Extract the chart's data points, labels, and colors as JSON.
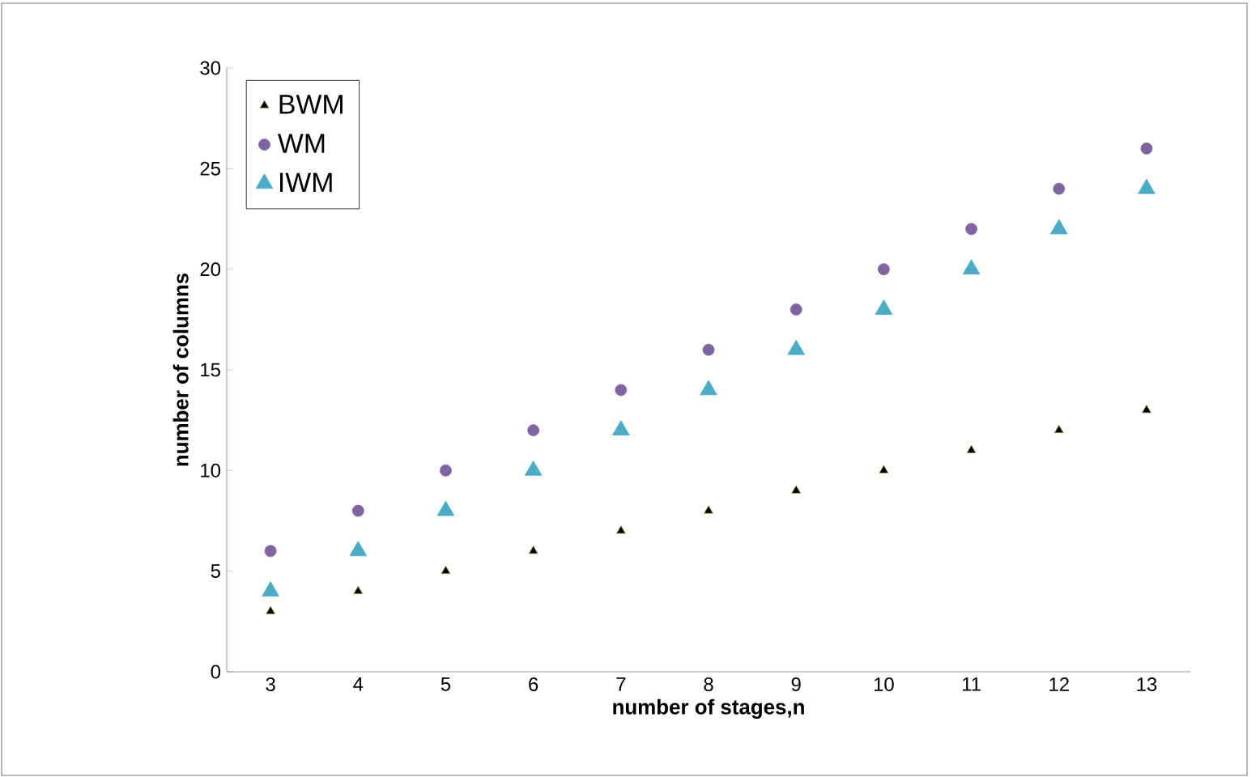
{
  "chart_data": {
    "type": "scatter",
    "xlabel": "number of stages,n",
    "ylabel": "number of columns",
    "categories": [
      "3",
      "4",
      "5",
      "6",
      "7",
      "8",
      "9",
      "10",
      "11",
      "12",
      "13"
    ],
    "series": [
      {
        "name": "BWM",
        "color": "#000000",
        "marker": "triangle",
        "values": [
          3,
          4,
          5,
          6,
          7,
          8,
          9,
          10,
          11,
          12,
          13
        ]
      },
      {
        "name": "WM",
        "color": "#8064a2",
        "marker": "circle",
        "values": [
          6,
          8,
          10,
          12,
          14,
          16,
          18,
          20,
          22,
          24,
          26
        ]
      },
      {
        "name": "IWM",
        "color": "#4bacc6",
        "marker": "triangle",
        "values": [
          4,
          6,
          8,
          10,
          12,
          14,
          16,
          18,
          20,
          22,
          24
        ]
      }
    ],
    "ylim": [
      0,
      30
    ],
    "yticks": [
      0,
      5,
      10,
      15,
      20,
      25,
      30
    ],
    "grid": false,
    "legend": "top left"
  }
}
